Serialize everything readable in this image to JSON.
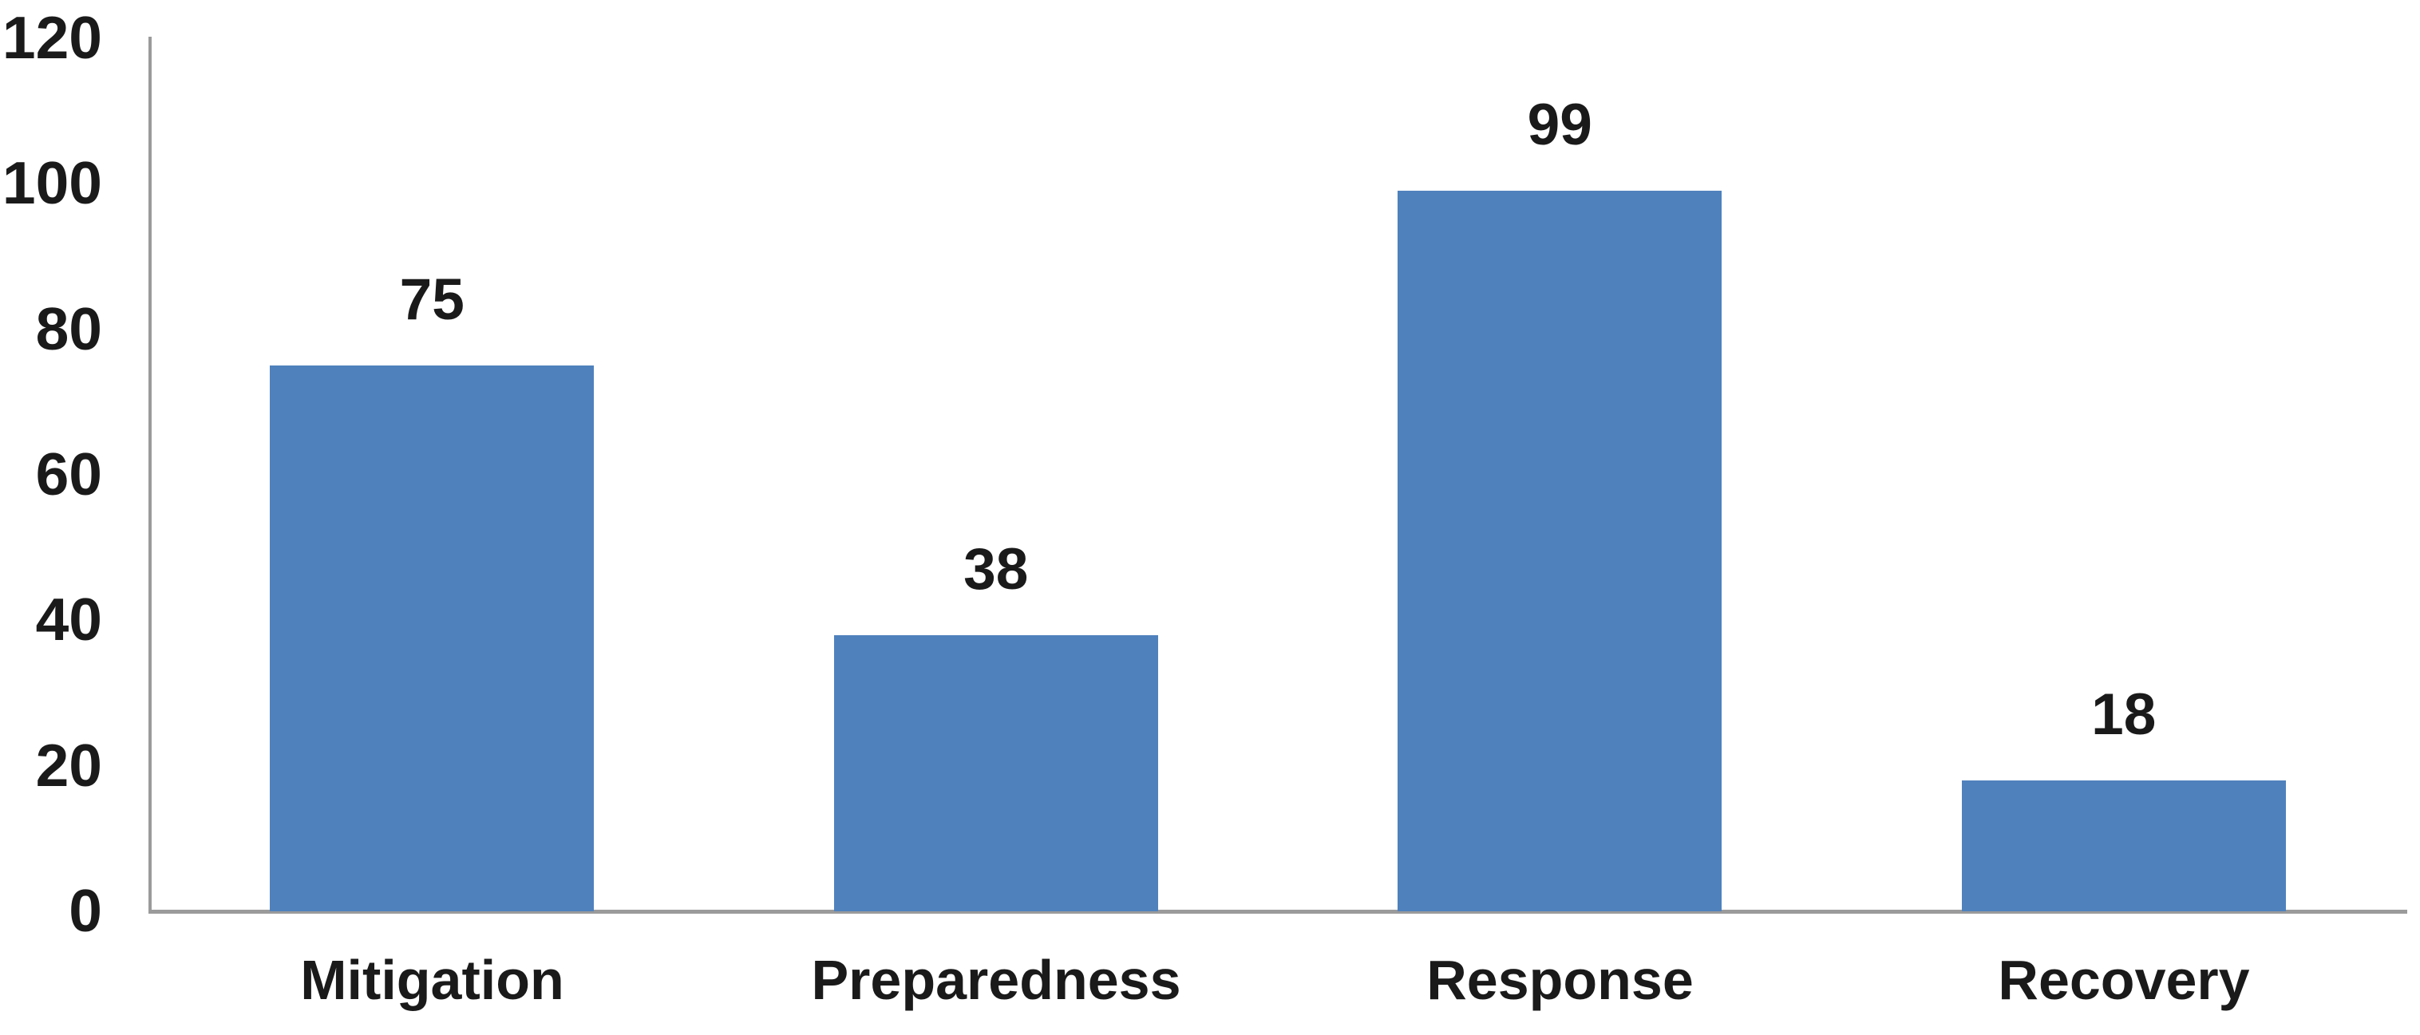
{
  "chart_data": {
    "type": "bar",
    "title": "",
    "xlabel": "",
    "ylabel": "",
    "categories": [
      "Mitigation",
      "Preparedness",
      "Response",
      "Recovery"
    ],
    "values": [
      75,
      38,
      99,
      18
    ],
    "data_labels": [
      "75",
      "38",
      "99",
      "18"
    ],
    "yticks": [
      0,
      20,
      40,
      60,
      80,
      100,
      120
    ],
    "ytick_labels": [
      "0",
      "20",
      "40",
      "60",
      "80",
      "100",
      "120"
    ],
    "ylim": [
      0,
      120
    ],
    "grid": "off",
    "legend": "none",
    "bar_color": "#4f81bd",
    "axis_color": "#9b9b9b",
    "label_color": "#1a1a1a",
    "background_color": "#ffffff"
  }
}
